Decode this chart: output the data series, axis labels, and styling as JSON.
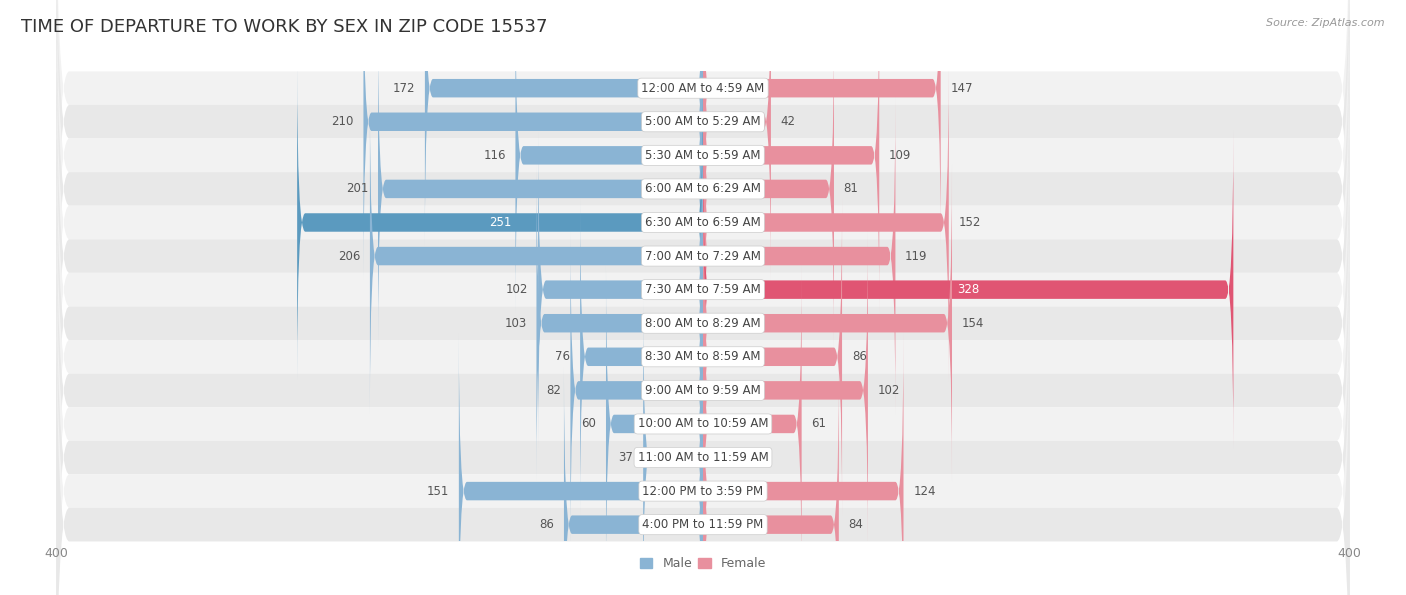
{
  "title": "TIME OF DEPARTURE TO WORK BY SEX IN ZIP CODE 15537",
  "source": "Source: ZipAtlas.com",
  "categories": [
    "12:00 AM to 4:59 AM",
    "5:00 AM to 5:29 AM",
    "5:30 AM to 5:59 AM",
    "6:00 AM to 6:29 AM",
    "6:30 AM to 6:59 AM",
    "7:00 AM to 7:29 AM",
    "7:30 AM to 7:59 AM",
    "8:00 AM to 8:29 AM",
    "8:30 AM to 8:59 AM",
    "9:00 AM to 9:59 AM",
    "10:00 AM to 10:59 AM",
    "11:00 AM to 11:59 AM",
    "12:00 PM to 3:59 PM",
    "4:00 PM to 11:59 PM"
  ],
  "male_values": [
    172,
    210,
    116,
    201,
    251,
    206,
    102,
    103,
    76,
    82,
    60,
    37,
    151,
    86
  ],
  "female_values": [
    147,
    42,
    109,
    81,
    152,
    119,
    328,
    154,
    86,
    102,
    61,
    0,
    124,
    84
  ],
  "male_color": "#8ab4d4",
  "female_color": "#e8909e",
  "male_highlight_color": "#5b9abf",
  "female_highlight_color": "#e05573",
  "male_label_color_default": "#555555",
  "female_label_color_default": "#555555",
  "male_label_color_highlight": "#ffffff",
  "female_label_color_highlight": "#ffffff",
  "highlight_male_index": 4,
  "highlight_female_index": 6,
  "axis_limit": 400,
  "row_bg_light": "#f2f2f2",
  "row_bg_dark": "#e8e8e8",
  "bar_height": 0.55,
  "category_fontsize": 8.5,
  "value_fontsize": 8.5,
  "title_fontsize": 13,
  "legend_fontsize": 9,
  "axis_tick_fontsize": 9,
  "background_color": "#ffffff"
}
